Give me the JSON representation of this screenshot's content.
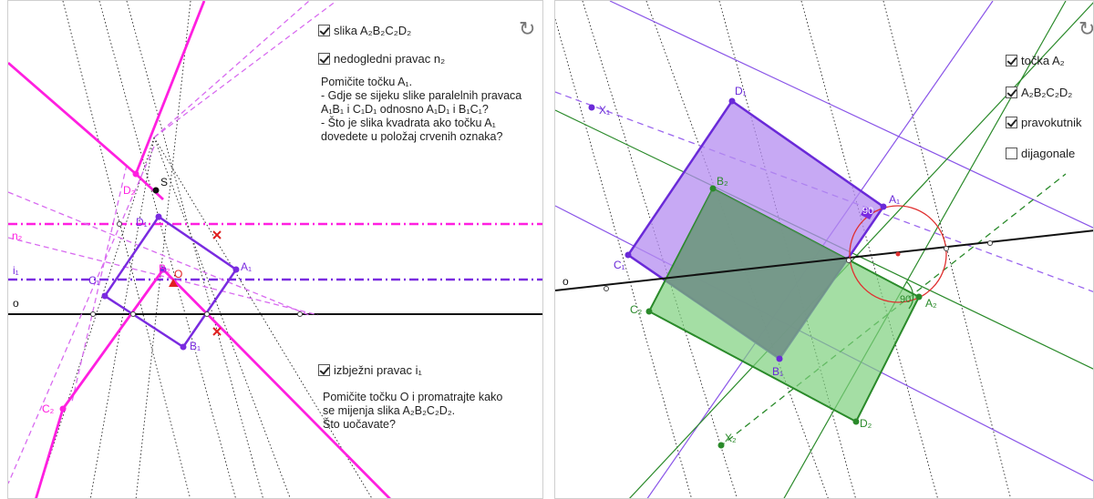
{
  "left": {
    "checkboxes": {
      "image": {
        "checked": true,
        "label": "slika A₂B₂C₂D₂"
      },
      "vanishing_line": {
        "checked": true,
        "label": "nedogledni pravac n₂"
      },
      "escape_line": {
        "checked": true,
        "label": "izbježni pravac i₁"
      }
    },
    "instruction1": [
      "Pomičite točku A₁.",
      "- Gdje se sijeku slike paralelnih pravaca",
      "A₁B₁ i C₁D₁ odnosno A₁D₁ i B₁C₁?",
      "- Što je slika kvadrata ako točku A₁",
      "dovedete u položaj crvenih oznaka?"
    ],
    "instruction2": [
      "Pomičite točku O i promatrajte kako",
      "se mijenja slika A₂B₂C₂D₂.",
      "Što uočavate?"
    ],
    "labels": {
      "D2": "D₂",
      "S": "S",
      "D1": "D₁",
      "B2": "B₂",
      "O": "O",
      "A1": "A₁",
      "C1": "C₁",
      "B1": "B₁",
      "C2": "C₂",
      "n2": "n₂",
      "i1": "i₁",
      "o": "o"
    },
    "colors": {
      "magenta": "#ff1fe0",
      "purple": "#7a2be0",
      "dashed_magenta": "#d86bf0"
    }
  },
  "right": {
    "checkboxes": {
      "point_a2": {
        "checked": true,
        "label": "točka A₂"
      },
      "image": {
        "checked": true,
        "label": "A₂B₂C₂D₂"
      },
      "rectangle": {
        "checked": true,
        "label": "pravokutnik"
      },
      "diagonals": {
        "checked": false,
        "label": "dijagonale"
      }
    },
    "labels": {
      "D1": "D₁",
      "X1": "X₁",
      "B2": "B₂",
      "A1": "A₁",
      "C1": "C₁",
      "C2": "C₂",
      "A2": "A₂",
      "B1": "B₁",
      "D2": "D₂",
      "X2": "X₂",
      "o": "o",
      "angle1": "90",
      "angle2": "90"
    },
    "colors": {
      "purple_fill": "#b48cf0",
      "green_fill": "#7ed07e",
      "overlap": "#6f8f84"
    }
  },
  "icons": {
    "reset": "reset-icon"
  }
}
